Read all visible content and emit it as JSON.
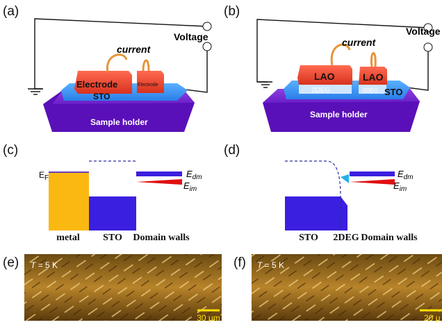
{
  "panels": [
    {
      "label": "(a)",
      "voltage": "Voltage",
      "current": "current",
      "layers": [
        "Electrode",
        "Electrode",
        "STO",
        "Sample holder"
      ]
    },
    {
      "label": "(b)",
      "voltage": "Voltage",
      "current": "current",
      "layers": [
        "LAO",
        "LAO",
        "2DEG",
        "2DEG",
        "STO",
        "Sample holder"
      ]
    },
    {
      "label": "(c)",
      "fermi": {
        "symbol": "E",
        "subscript": "F"
      },
      "levels": [
        {
          "symbol": "E",
          "subscript": "dm"
        },
        {
          "symbol": "E",
          "subscript": "im"
        }
      ],
      "regions": [
        "metal",
        "STO",
        "Domain walls"
      ]
    },
    {
      "label": "(d)",
      "levels": [
        {
          "symbol": "E",
          "subscript": "dm"
        },
        {
          "symbol": "E",
          "subscript": "im"
        }
      ],
      "regions": [
        "STO",
        "2DEG",
        "Domain walls"
      ]
    },
    {
      "label": "(e)",
      "temperature": {
        "symbol": "T",
        "text": " = 5 K"
      },
      "scale_bar": "30 μm"
    },
    {
      "label": "(f)",
      "temperature": {
        "symbol": "T",
        "text": " = 5 K"
      },
      "scale_bar": "20 μ"
    }
  ]
}
